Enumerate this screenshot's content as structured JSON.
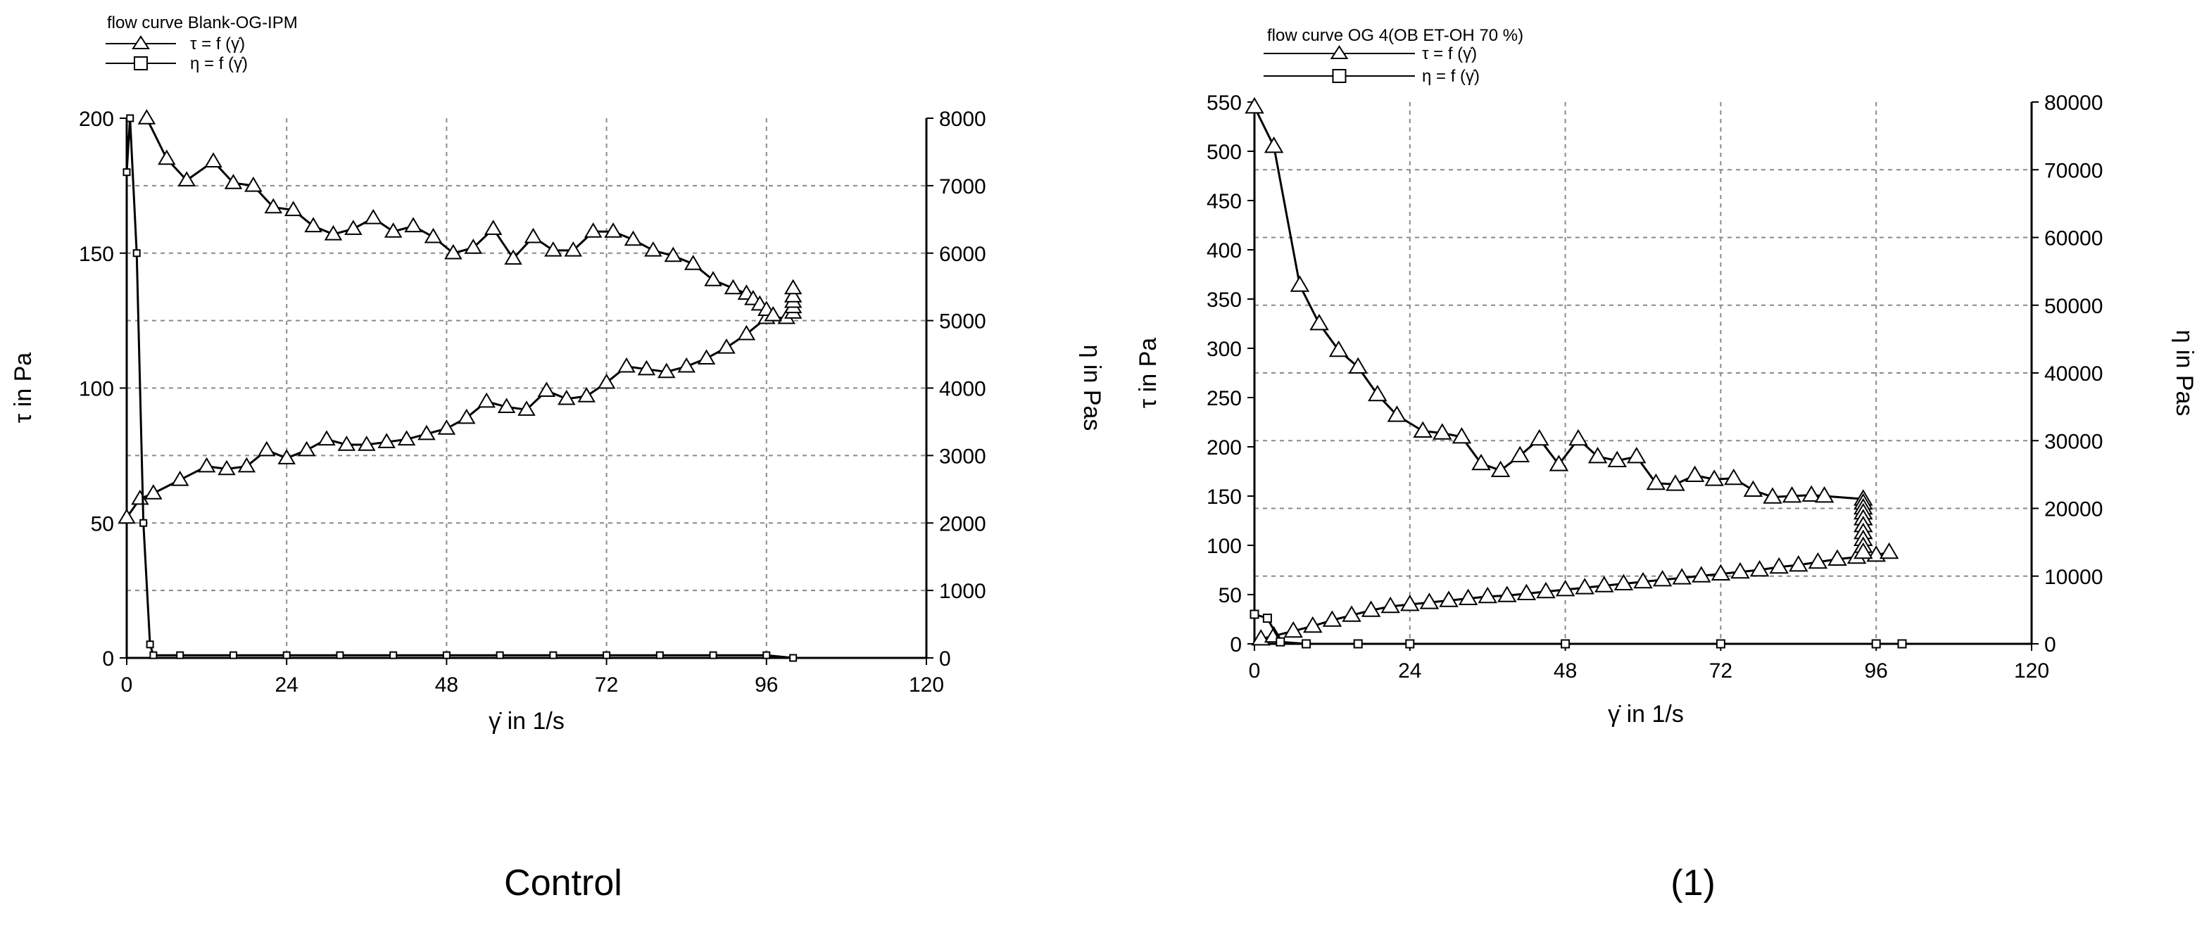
{
  "captions": {
    "left": "Control",
    "right": "(1)"
  },
  "chart_data": [
    {
      "type": "line",
      "title": "flow curve Blank-OG-IPM",
      "xlabel": "γ̇ in 1/s",
      "ylabel_left": "τ in Pa",
      "ylabel_right": "η in Pas",
      "xlim": [
        0,
        120
      ],
      "ylim_left": [
        0,
        200
      ],
      "ylim_right": [
        0,
        8000
      ],
      "xticks": [
        0,
        24,
        48,
        72,
        96,
        120
      ],
      "yticks_left": [
        0,
        50,
        100,
        150,
        200
      ],
      "yticks_right": [
        0,
        1000,
        2000,
        3000,
        4000,
        5000,
        6000,
        7000,
        8000
      ],
      "grid": true,
      "legend_position": "top-left",
      "series": [
        {
          "name": "τ = f (γ̇)",
          "marker": "triangle",
          "axis": "left",
          "points": [
            [
              0,
              52
            ],
            [
              2,
              59
            ],
            [
              4,
              61
            ],
            [
              8,
              66
            ],
            [
              12,
              71
            ],
            [
              15,
              70
            ],
            [
              18,
              71
            ],
            [
              21,
              77
            ],
            [
              24,
              74
            ],
            [
              27,
              77
            ],
            [
              30,
              81
            ],
            [
              33,
              79
            ],
            [
              36,
              79
            ],
            [
              39,
              80
            ],
            [
              42,
              81
            ],
            [
              45,
              83
            ],
            [
              48,
              85
            ],
            [
              51,
              89
            ],
            [
              54,
              95
            ],
            [
              57,
              93
            ],
            [
              60,
              92
            ],
            [
              63,
              99
            ],
            [
              66,
              96
            ],
            [
              69,
              97
            ],
            [
              72,
              102
            ],
            [
              75,
              108
            ],
            [
              78,
              107
            ],
            [
              81,
              106
            ],
            [
              84,
              108
            ],
            [
              87,
              111
            ],
            [
              90,
              115
            ],
            [
              93,
              120
            ],
            [
              96,
              126
            ],
            [
              99,
              126
            ],
            [
              100,
              128
            ],
            [
              100,
              130
            ],
            [
              100,
              132
            ],
            [
              100,
              134
            ],
            [
              100,
              137
            ]
          ]
        },
        {
          "name": "η = f (γ̇)",
          "marker": "square",
          "axis": "left",
          "points": [
            [
              0,
              180
            ],
            [
              0.5,
              200
            ],
            [
              1.5,
              150
            ],
            [
              2.5,
              50
            ],
            [
              3.5,
              5
            ],
            [
              4,
              1
            ],
            [
              8,
              1
            ],
            [
              16,
              1
            ],
            [
              24,
              1
            ],
            [
              32,
              1
            ],
            [
              40,
              1
            ],
            [
              48,
              1
            ],
            [
              56,
              1
            ],
            [
              64,
              1
            ],
            [
              72,
              1
            ],
            [
              80,
              1
            ],
            [
              88,
              1
            ],
            [
              96,
              1
            ],
            [
              100,
              0
            ]
          ]
        },
        {
          "name": "",
          "marker": "triangle",
          "axis": "left",
          "points": [
            [
              3,
              200
            ],
            [
              6,
              185
            ],
            [
              9,
              177
            ],
            [
              13,
              184
            ],
            [
              16,
              176
            ],
            [
              19,
              175
            ],
            [
              22,
              167
            ],
            [
              25,
              166
            ],
            [
              28,
              160
            ],
            [
              31,
              157
            ],
            [
              34,
              159
            ],
            [
              37,
              163
            ],
            [
              40,
              158
            ],
            [
              43,
              160
            ],
            [
              46,
              156
            ],
            [
              49,
              150
            ],
            [
              52,
              152
            ],
            [
              55,
              159
            ],
            [
              58,
              148
            ],
            [
              61,
              156
            ],
            [
              64,
              151
            ],
            [
              67,
              151
            ],
            [
              70,
              158
            ],
            [
              73,
              158
            ],
            [
              76,
              155
            ],
            [
              79,
              151
            ],
            [
              82,
              149
            ],
            [
              85,
              146
            ],
            [
              88,
              140
            ],
            [
              91,
              137
            ],
            [
              93,
              135
            ],
            [
              94,
              133
            ],
            [
              95,
              131
            ],
            [
              96,
              129
            ],
            [
              97,
              127
            ]
          ]
        }
      ]
    },
    {
      "type": "line",
      "title": "flow curve OG 4(OB ET-OH 70 %)",
      "xlabel": "γ̇ in 1/s",
      "ylabel_left": "τ in Pa",
      "ylabel_right": "η in Pas",
      "xlim": [
        0,
        120
      ],
      "ylim_left": [
        0,
        550
      ],
      "ylim_right": [
        0,
        80000
      ],
      "xticks": [
        0,
        24,
        48,
        72,
        96,
        120
      ],
      "yticks_left": [
        0,
        50,
        100,
        150,
        200,
        250,
        300,
        350,
        400,
        450,
        500,
        550
      ],
      "yticks_right": [
        0,
        10000,
        20000,
        30000,
        40000,
        50000,
        60000,
        70000,
        80000
      ],
      "grid": true,
      "legend_position": "top-left",
      "series": [
        {
          "name": "τ = f (γ̇)",
          "marker": "triangle",
          "axis": "left",
          "points": [
            [
              1,
              5
            ],
            [
              3,
              8
            ],
            [
              6,
              13
            ],
            [
              9,
              18
            ],
            [
              12,
              24
            ],
            [
              15,
              29
            ],
            [
              18,
              34
            ],
            [
              21,
              38
            ],
            [
              24,
              40
            ],
            [
              27,
              42
            ],
            [
              30,
              44
            ],
            [
              33,
              46
            ],
            [
              36,
              48
            ],
            [
              39,
              49
            ],
            [
              42,
              51
            ],
            [
              45,
              53
            ],
            [
              48,
              55
            ],
            [
              51,
              57
            ],
            [
              54,
              59
            ],
            [
              57,
              61
            ],
            [
              60,
              63
            ],
            [
              63,
              65
            ],
            [
              66,
              67
            ],
            [
              69,
              69
            ],
            [
              72,
              71
            ],
            [
              75,
              73
            ],
            [
              78,
              75
            ],
            [
              81,
              78
            ],
            [
              84,
              80
            ],
            [
              87,
              83
            ],
            [
              90,
              86
            ],
            [
              93,
              88
            ],
            [
              96,
              90
            ],
            [
              98,
              93
            ]
          ]
        },
        {
          "name": "η = f (γ̇)",
          "marker": "square",
          "axis": "left",
          "points": [
            [
              0,
              30
            ],
            [
              2,
              26
            ],
            [
              4,
              2
            ],
            [
              8,
              0
            ],
            [
              16,
              0
            ],
            [
              24,
              0
            ],
            [
              48,
              0
            ],
            [
              72,
              0
            ],
            [
              96,
              0
            ],
            [
              100,
              0
            ]
          ]
        },
        {
          "name": "",
          "marker": "triangle",
          "axis": "left",
          "points": [
            [
              0,
              545
            ],
            [
              3,
              505
            ],
            [
              7,
              364
            ],
            [
              10,
              325
            ],
            [
              13,
              298
            ],
            [
              16,
              281
            ],
            [
              19,
              253
            ],
            [
              22,
              232
            ],
            [
              26,
              216
            ],
            [
              29,
              214
            ],
            [
              32,
              210
            ],
            [
              35,
              183
            ],
            [
              38,
              176
            ],
            [
              41,
              191
            ],
            [
              44,
              208
            ],
            [
              47,
              182
            ],
            [
              50,
              208
            ],
            [
              53,
              190
            ],
            [
              56,
              186
            ],
            [
              59,
              190
            ],
            [
              62,
              163
            ],
            [
              65,
              162
            ],
            [
              68,
              171
            ],
            [
              71,
              167
            ],
            [
              74,
              168
            ],
            [
              77,
              156
            ],
            [
              80,
              149
            ],
            [
              83,
              150
            ],
            [
              86,
              151
            ],
            [
              88,
              150
            ],
            [
              94,
              147
            ],
            [
              94,
              143
            ],
            [
              94,
              138
            ],
            [
              94,
              133
            ],
            [
              94,
              127
            ],
            [
              94,
              120
            ],
            [
              94,
              113
            ],
            [
              94,
              106
            ],
            [
              94,
              99
            ],
            [
              94,
              93
            ]
          ]
        }
      ]
    }
  ]
}
